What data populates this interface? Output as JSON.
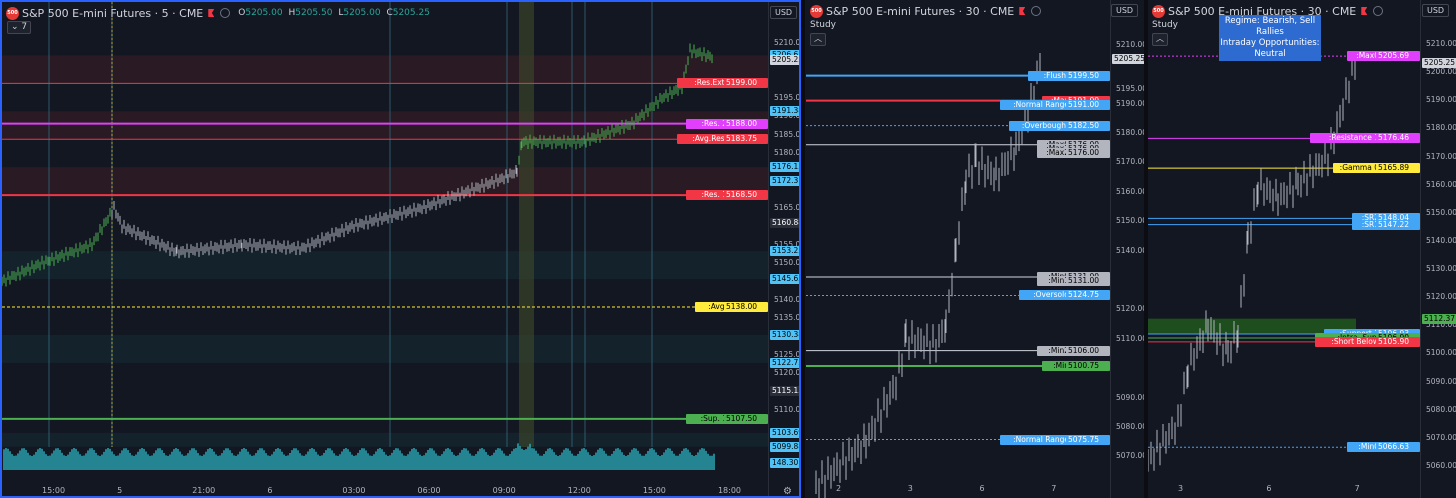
{
  "colors": {
    "bg": "#131722",
    "blue": "#42a5f5",
    "cyan": "#4fc3f7",
    "red": "#f23645",
    "magenta": "#e040fb",
    "yellow": "#ffeb3b",
    "green": "#4caf50",
    "gray": "#d1d4dc",
    "darkgray": "#434651",
    "zone_red": "#3a1c27",
    "zone_teal": "#152a33",
    "zone_green": "#1e4d1e"
  },
  "panels": [
    {
      "id": "p1",
      "title": "S&P 500 E-mini Futures · 5 · CME",
      "logo": "500",
      "currency": "USD",
      "ohlc": {
        "o_key": "O",
        "o": "5205.00",
        "h_key": "H",
        "h": "5205.50",
        "l_key": "L",
        "l": "5205.00",
        "c_key": "C",
        "c": "5205.25"
      },
      "indicator_toggle": "7",
      "y_range": [
        5093,
        5213
      ],
      "price_ticks": [
        "5210.00",
        "5195.00",
        "5190.00",
        "5185.00",
        "5180.00",
        "5165.00",
        "5155.00",
        "5150.00",
        "5140.00",
        "5135.00",
        "5125.00",
        "5120.00",
        "5110.00"
      ],
      "x_ticks": [
        "15:00",
        "5",
        "21:00",
        "6",
        "03:00",
        "06:00",
        "09:00",
        "12:00",
        "15:00",
        "18:00"
      ],
      "levels": [
        {
          "label": ":Res.Ext.",
          "value": "5199.00",
          "price": 5199,
          "color": "red",
          "width": 1
        },
        {
          "label": ":Res. 2",
          "value": "5188.00",
          "price": 5188,
          "color": "magenta",
          "width": 2
        },
        {
          "label": ":Avg.Res.",
          "value": "5183.75",
          "price": 5183.75,
          "color": "red",
          "width": 1
        },
        {
          "label": ":Res. 1",
          "value": "5168.50",
          "price": 5168.5,
          "color": "red",
          "width": 2
        },
        {
          "label": ":Avg.",
          "value": "5138.00",
          "price": 5138,
          "color": "yellow",
          "width": 1,
          "dashed": true
        },
        {
          "label": ":Sup. 1",
          "value": "5107.50",
          "price": 5107.5,
          "color": "green",
          "width": 2
        }
      ],
      "plain_prices": [
        {
          "value": "5206.63",
          "price": 5206.63,
          "style": "cyan"
        },
        {
          "value": "5205.25",
          "price": 5205.25,
          "style": "current"
        },
        {
          "value": "5191.38",
          "price": 5191.38,
          "style": "cyan"
        },
        {
          "value": "5176.13",
          "price": 5176.13,
          "style": "cyan"
        },
        {
          "value": "5172.31",
          "price": 5172.31,
          "style": "cyan"
        },
        {
          "value": "5160.88",
          "price": 5160.88,
          "style": "dark"
        },
        {
          "value": "5153.25",
          "price": 5153.25,
          "style": "cyan"
        },
        {
          "value": "5145.63",
          "price": 5145.63,
          "style": "cyan"
        },
        {
          "value": "5130.38",
          "price": 5130.38,
          "style": "cyan"
        },
        {
          "value": "5122.75",
          "price": 5122.75,
          "style": "cyan"
        },
        {
          "value": "5115.13",
          "price": 5115.13,
          "style": "dark"
        },
        {
          "value": "5103.69",
          "price": 5103.69,
          "style": "cyan"
        },
        {
          "value": "5099.88",
          "price": 5099.88,
          "style": "cyan"
        },
        {
          "value": "148.30",
          "price": 5095.5,
          "style": "cyan"
        }
      ]
    },
    {
      "id": "p2",
      "title": "S&P 500 E-mini Futures · 30 · CME",
      "logo": "500",
      "currency": "USD",
      "study_label": "Study",
      "y_range": [
        5062,
        5215
      ],
      "price_ticks": [
        "5210.00",
        "5195.00",
        "5190.00",
        "5180.00",
        "5170.00",
        "5160.00",
        "5150.00",
        "5140.00",
        "5120.00",
        "5110.00",
        "5090.00",
        "5080.00",
        "5070.00"
      ],
      "x_ticks": [
        "2",
        "3",
        "6",
        "7"
      ],
      "levels": [
        {
          "label": ":Flush!",
          "value": "5199.50",
          "price": 5199.5,
          "color": "blue",
          "width": 2
        },
        {
          "label": ":Max",
          "value": "5191.00",
          "price": 5191,
          "color": "red",
          "width": 2
        },
        {
          "label": ":Normal Range",
          "value": "5191.00",
          "price": 5189.6,
          "color": "blue",
          "width": 0
        },
        {
          "label": ":Overbought",
          "value": "5182.50",
          "price": 5182.5,
          "color": "blue",
          "width": 1,
          "dotted": true
        },
        {
          "label": ":Max0",
          "value": "5176.00",
          "price": 5176,
          "color": "gray",
          "width": 1
        },
        {
          "label": ":Max1",
          "value": "5176.00",
          "price": 5174.6,
          "color": "gray",
          "width": 0
        },
        {
          "label": ":Max2",
          "value": "5176.00",
          "price": 5173.2,
          "color": "gray",
          "width": 0
        },
        {
          "label": ":Min0",
          "value": "5131.00",
          "price": 5131,
          "color": "gray",
          "width": 1
        },
        {
          "label": ":Min1",
          "value": "5131.00",
          "price": 5129.6,
          "color": "gray",
          "width": 0
        },
        {
          "label": ":Oversold",
          "value": "5124.75",
          "price": 5124.75,
          "color": "blue",
          "width": 1,
          "dotted": true
        },
        {
          "label": ":Min2",
          "value": "5106.00",
          "price": 5106,
          "color": "gray",
          "width": 1
        },
        {
          "label": ":Min",
          "value": "5100.75",
          "price": 5100.75,
          "color": "green",
          "width": 2
        },
        {
          "label": ":Normal Range",
          "value": "5075.75",
          "price": 5075.75,
          "color": "blue",
          "width": 1,
          "dotted": true
        }
      ],
      "plain_prices": [
        {
          "value": "5205.25",
          "price": 5205.25,
          "style": "current"
        }
      ]
    },
    {
      "id": "p3",
      "title": "S&P 500 E-mini Futures · 30 · CME",
      "logo": "500",
      "currency": "USD",
      "study_label": "Study",
      "regime_line1": "Regime: Bearish, Sell Rallies",
      "regime_line2": "Intraday Opportunities: Neutral",
      "y_range": [
        5055,
        5215
      ],
      "price_ticks": [
        "5210.00",
        "5200.00",
        "5190.00",
        "5180.00",
        "5170.00",
        "5160.00",
        "5150.00",
        "5140.00",
        "5130.00",
        "5120.00",
        "5110.00",
        "5100.00",
        "5090.00",
        "5080.00",
        "5070.00",
        "5060.00"
      ],
      "x_ticks": [
        "3",
        "6",
        "7"
      ],
      "levels": [
        {
          "label": ":Max0",
          "value": "5205.69",
          "price": 5205.69,
          "color": "magenta",
          "width": 1,
          "dotted": true
        },
        {
          "label": ":Resistance 1",
          "value": "5176.46",
          "price": 5176.46,
          "color": "magenta",
          "width": 1
        },
        {
          "label": ":Gamma 0",
          "value": "5165.89",
          "price": 5165.89,
          "color": "yellow",
          "width": 1
        },
        {
          "label": ":SR2",
          "value": "5148.04",
          "price": 5148.04,
          "color": "blue",
          "width": 1
        },
        {
          "label": ":SR1",
          "value": "5147.22",
          "price": 5145.8,
          "color": "blue",
          "width": 1
        },
        {
          "label": ":Support 1",
          "value": "5106.93",
          "price": 5106.93,
          "color": "blue",
          "width": 1
        },
        {
          "label": ":Intra. Sup.",
          "value": "5106.90",
          "price": 5105.5,
          "color": "green",
          "width": 1
        },
        {
          "label": ":Short Below",
          "value": "5105.90",
          "price": 5104.1,
          "color": "red",
          "width": 1
        },
        {
          "label": ":Min0",
          "value": "5066.63",
          "price": 5066.63,
          "color": "blue",
          "width": 1,
          "dotted": true
        }
      ],
      "plain_prices": [
        {
          "value": "5205.25",
          "price": 5203.2,
          "style": "current"
        },
        {
          "value": "5112.37",
          "price": 5112.37,
          "style": "green"
        }
      ]
    }
  ]
}
